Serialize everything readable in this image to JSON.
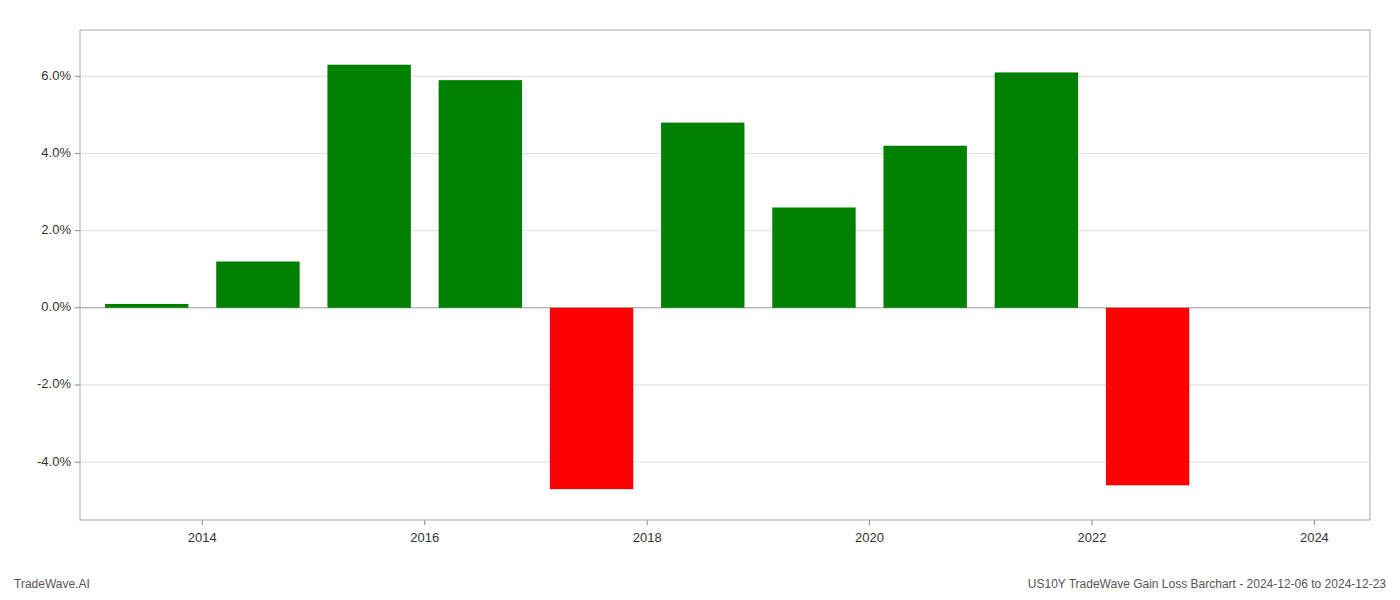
{
  "chart_data": {
    "type": "bar",
    "x": [
      2013.5,
      2014.5,
      2015.5,
      2016.5,
      2017.5,
      2018.5,
      2019.5,
      2020.5,
      2021.5,
      2022.5
    ],
    "values": [
      0.1,
      1.2,
      6.3,
      5.9,
      -4.7,
      4.8,
      2.6,
      4.2,
      6.1,
      -4.6
    ],
    "colors": [
      "#008000",
      "#008000",
      "#008000",
      "#008000",
      "#ff0000",
      "#008000",
      "#008000",
      "#008000",
      "#008000",
      "#ff0000"
    ],
    "xlim": [
      2012.9,
      2024.5
    ],
    "xticks": [
      2014,
      2016,
      2018,
      2020,
      2022,
      2024
    ],
    "ylim": [
      -5.5,
      7.2
    ],
    "yticks": [
      {
        "value": -4.0,
        "label": "-4.0%"
      },
      {
        "value": -2.0,
        "label": "-2.0%"
      },
      {
        "value": 0.0,
        "label": "0.0%"
      },
      {
        "value": 2.0,
        "label": "2.0%"
      },
      {
        "value": 4.0,
        "label": "4.0%"
      },
      {
        "value": 6.0,
        "label": "6.0%"
      }
    ],
    "grid": true,
    "annotations": [
      "TradeWave.AI",
      "US10Y TradeWave Gain Loss Barchart - 2024-12-06 to 2024-12-23"
    ]
  }
}
